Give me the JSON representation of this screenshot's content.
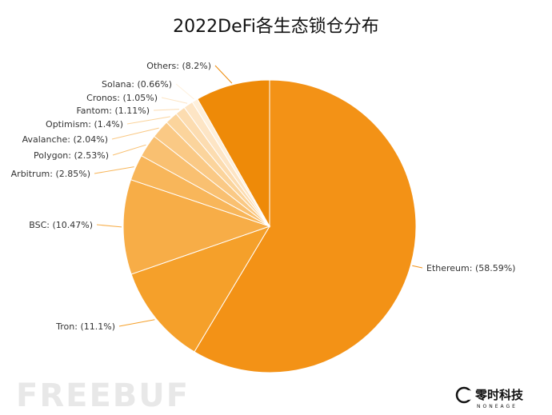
{
  "chart_data": {
    "type": "pie",
    "title": "2022DeFi各生态锁仓分布",
    "slices": [
      {
        "label": "Ethereum: (58.59%)",
        "value": 58.59,
        "color": "#f39216"
      },
      {
        "label": "Tron: (11.1%)",
        "value": 11.1,
        "color": "#f5a02a"
      },
      {
        "label": "BSC: (10.47%)",
        "value": 10.47,
        "color": "#f7ad47"
      },
      {
        "label": "Arbitrum: (2.85%)",
        "value": 2.85,
        "color": "#f8b65a"
      },
      {
        "label": "Polygon: (2.53%)",
        "value": 2.53,
        "color": "#f9c071"
      },
      {
        "label": "Avalanche: (2.04%)",
        "value": 2.04,
        "color": "#fac985"
      },
      {
        "label": "Optimism: (1.4%)",
        "value": 1.4,
        "color": "#fbd49c"
      },
      {
        "label": "Fantom: (1.11%)",
        "value": 1.11,
        "color": "#fcdcb0"
      },
      {
        "label": "Cronos: (1.05%)",
        "value": 1.05,
        "color": "#fde5c5"
      },
      {
        "label": "Solana: (0.66%)",
        "value": 0.66,
        "color": "#fef0dc"
      },
      {
        "label": "Others: (8.2%)",
        "value": 8.2,
        "color": "#ee8a08"
      }
    ]
  },
  "watermark": "FREEBUF",
  "brand": {
    "name": "零时科技",
    "sub": "NONEAGE"
  }
}
